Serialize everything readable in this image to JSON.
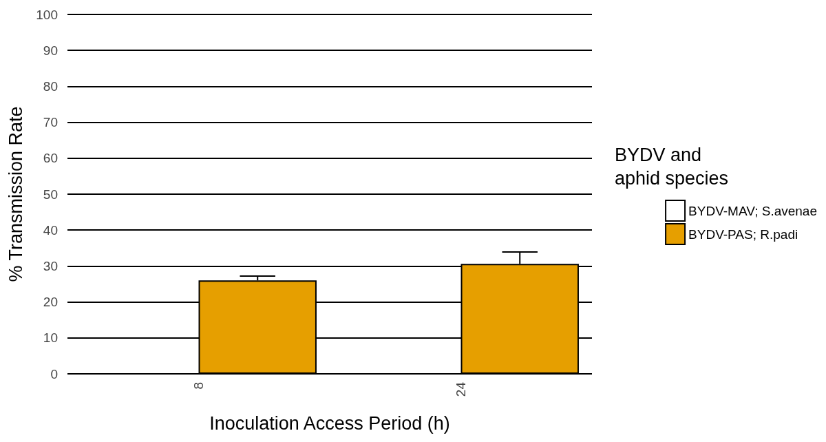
{
  "chart_data": {
    "type": "bar",
    "xlabel": "Inoculation Access Period (h)",
    "ylabel": "% Transmission Rate",
    "legend_title": "BYDV and\naphid species",
    "categories": [
      "8",
      "24"
    ],
    "series": [
      {
        "name": "BYDV-MAV; S.avenae",
        "color": "#ffffff",
        "values": [
          null,
          null
        ]
      },
      {
        "name": "BYDV-PAS; R.padi",
        "color": "#e69f00",
        "values": [
          26,
          30.6
        ],
        "errors": [
          [
            26,
            27.2
          ],
          [
            30.6,
            33.9
          ]
        ]
      }
    ],
    "ylim": [
      0,
      100
    ],
    "yticks": [
      0,
      10,
      20,
      30,
      40,
      50,
      60,
      70,
      80,
      90,
      100
    ],
    "grid": "y",
    "legend": "right"
  }
}
